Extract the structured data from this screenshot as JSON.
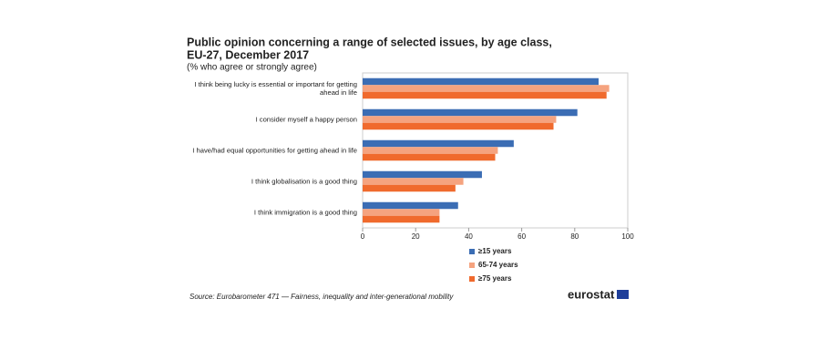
{
  "chart_data": {
    "type": "hbar",
    "title": "Public opinion concerning a range of selected issues, by age class,",
    "title_line2": "EU-27, December 2017",
    "subtitle": "(% who agree or strongly agree)",
    "categories": [
      "I think being lucky is essential or important for getting ahead in life",
      "I consider myself a happy person",
      "I have/had equal opportunities for getting ahead in life",
      "I think globalisation is a good thing",
      "I think immigration is a good thing"
    ],
    "series": [
      {
        "name": "≥15 years",
        "color": "#3b6db4",
        "values": [
          89,
          81,
          57,
          45,
          36
        ]
      },
      {
        "name": "65-74 years",
        "color": "#f5a37f",
        "values": [
          93,
          73,
          51,
          38,
          29
        ]
      },
      {
        "name": "≥75 years",
        "color": "#f06a2d",
        "values": [
          92,
          72,
          50,
          35,
          29
        ]
      }
    ],
    "xlim": [
      0,
      100
    ],
    "xticks": [
      0,
      20,
      40,
      60,
      80,
      100
    ],
    "source": "Source: Eurobarometer 471 — Fairness, inequality and inter-generational mobility",
    "logo": "eurostat"
  }
}
